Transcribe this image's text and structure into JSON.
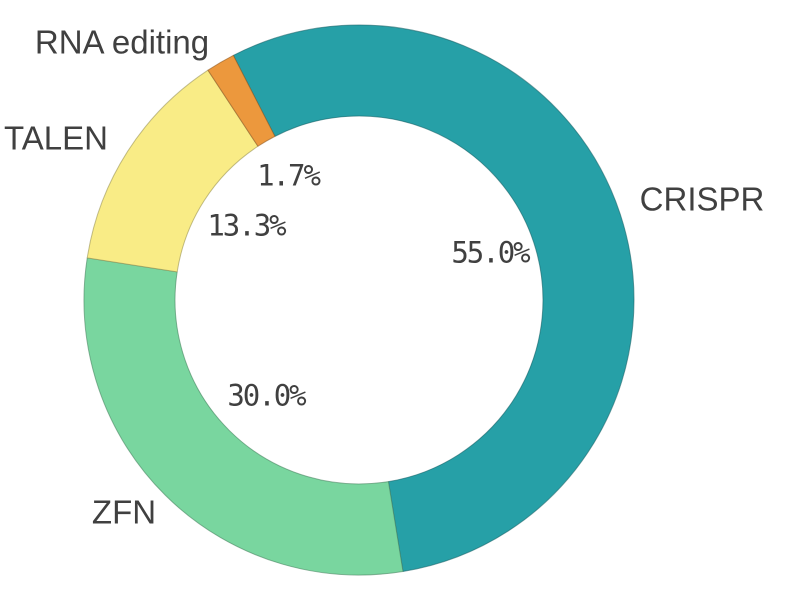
{
  "chart_data": {
    "type": "pie",
    "subtype": "donut",
    "title": "",
    "categories": [
      "CRISPR",
      "ZFN",
      "TALEN",
      "RNA editing"
    ],
    "values": [
      55.0,
      30.0,
      13.3,
      1.7
    ],
    "percent_labels": [
      "55.0%",
      "30.0%",
      "13.3%",
      "1.7%"
    ],
    "colors": [
      "#26a0a7",
      "#79d69f",
      "#f9ec86",
      "#ec983d"
    ],
    "start_angle_deg": -27.2,
    "direction": "clockwise",
    "inner_radius_ratio": 0.669,
    "legend": "none",
    "label_style": {
      "category_position": "outside",
      "percent_position": "inside-hole",
      "text_color": "#404040"
    },
    "background": "#ffffff"
  }
}
